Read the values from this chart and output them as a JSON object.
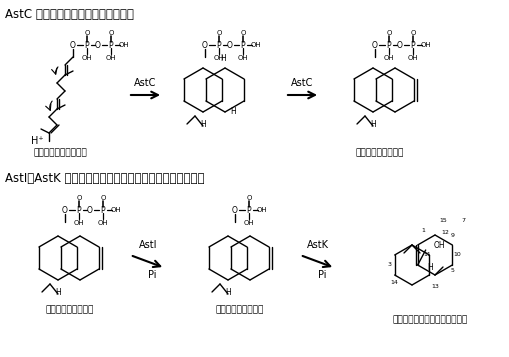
{
  "title_top": "AstC によるセスキテルペン環化反応",
  "title_bottom": "AstI、AstK によるドリマニルニリン酸の脱リン酸化反応",
  "label_farnesyl": "ファルネシルニリン酸",
  "label_drimanyl": "ドリマニルニリン酸",
  "label_drimanyl2": "ドリマニルニリン酸",
  "label_drimanyl_mono": "ドリマニルーリン酸",
  "label_driman_enol": "ドリム－８－エン－１１オール",
  "arrow_label_1": "AstC",
  "arrow_label_2": "AstC",
  "arrow_label_3": "AstI",
  "arrow_label_3b": "Pi",
  "arrow_label_4": "AstK",
  "arrow_label_4b": "Pi",
  "bg_color": "#ffffff",
  "text_color": "#000000",
  "font_size_title": 9,
  "font_size_label": 7,
  "font_size_arrow": 7
}
